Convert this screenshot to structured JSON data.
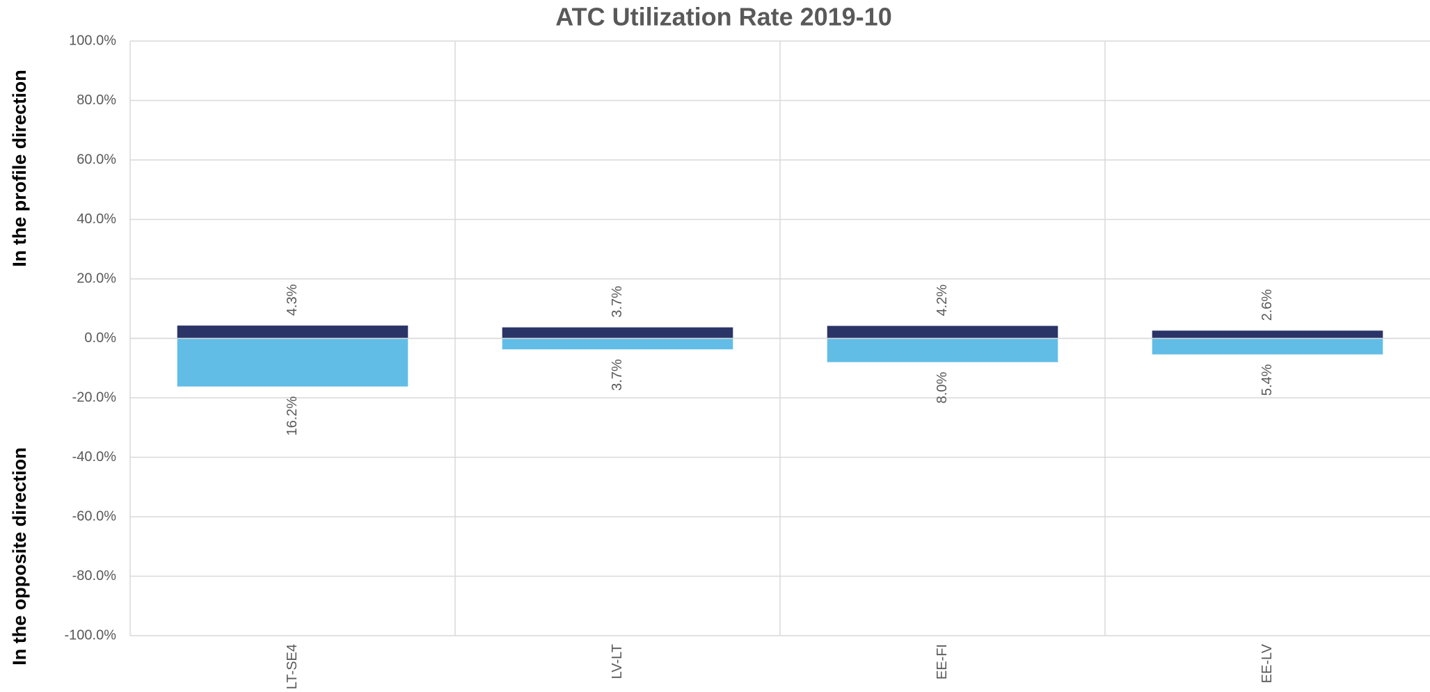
{
  "chart_data": {
    "type": "bar",
    "title": "ATC Utilization Rate 2019-10",
    "categories": [
      "LT-SE4",
      "LV-LT",
      "EE-FI",
      "EE-LV"
    ],
    "series": [
      {
        "name": "In the profile direction",
        "color": "#2b3467",
        "values": [
          4.3,
          3.7,
          4.2,
          2.6
        ],
        "value_labels": [
          "4.3%",
          "3.7%",
          "4.2%",
          "2.6%"
        ]
      },
      {
        "name": "In the opposite direction",
        "color": "#62bde6",
        "values": [
          -16.2,
          -3.7,
          -8.0,
          -5.4
        ],
        "value_labels": [
          "16.2%",
          "3.7%",
          "8.0%",
          "5.4%"
        ]
      }
    ],
    "ylim": [
      -100,
      100
    ],
    "yticks": [
      {
        "value": -100,
        "label": "-100.0%"
      },
      {
        "value": -80,
        "label": "-80.0%"
      },
      {
        "value": -60,
        "label": "-60.0%"
      },
      {
        "value": -40,
        "label": "-40.0%"
      },
      {
        "value": -20,
        "label": "-20.0%"
      },
      {
        "value": 0,
        "label": "0.0%"
      },
      {
        "value": 20,
        "label": "20.0%"
      },
      {
        "value": 40,
        "label": "40.0%"
      },
      {
        "value": 60,
        "label": "60.0%"
      },
      {
        "value": 80,
        "label": "80.0%"
      },
      {
        "value": 100,
        "label": "100.0%"
      }
    ],
    "grid": true
  }
}
